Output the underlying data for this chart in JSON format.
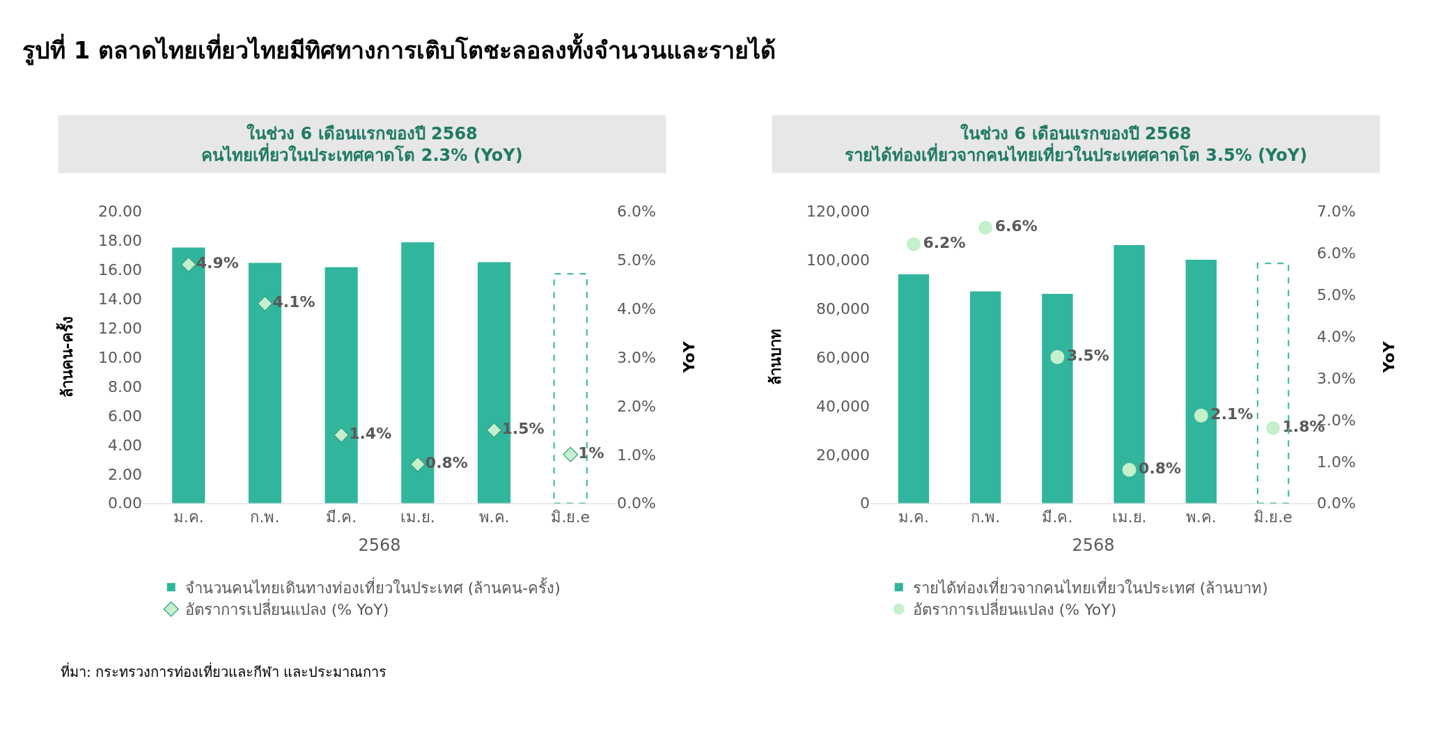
{
  "chart_data": [
    {
      "type": "bar",
      "title": "รูปที่ 1 ตลาดไทยเที่ยวไทยมีทิศทางการเติบโตชะลอลงทั้งจำนวนและรายได้",
      "subtitle": "ในช่วง 6 เดือนแรกของปี 2568\nคนไทยเที่ยวในประเทศคาดโต 2.3% (YoY)",
      "xlabel": "2568",
      "ylabel": "ล้านคน-ครั้ง",
      "y2label": "YoY",
      "categories": [
        "ม.ค.",
        "ก.พ.",
        "มี.ค.",
        "เม.ย.",
        "พ.ค.",
        "มิ.ย.e"
      ],
      "series": [
        {
          "name": "จำนวนคนไทยเดินทางท่องเที่ยวในประเทศ (ล้านคน-ครั้ง)",
          "color": "#31b59c",
          "values": [
            17.5,
            16.45,
            16.15,
            17.85,
            16.5,
            null
          ]
        },
        {
          "color": "#31b59c",
          "line_style": "dashed",
          "values": [
            null,
            null,
            null,
            null,
            null,
            15.7
          ]
        },
        {
          "name": "อัตราการเปลี่ยนแปลง (% YoY)",
          "type": "scatter",
          "axis": "y2",
          "marker": "diamond",
          "color": "#c6efce",
          "values": [
            4.9,
            4.1,
            1.4,
            0.8,
            1.5,
            1
          ],
          "value_labels": [
            "4.9%",
            "4.1%",
            "1.4%",
            "0.8%",
            "1.5%",
            "1%"
          ]
        }
      ],
      "ylim": [
        0,
        20
      ],
      "yticks": [
        {
          "value": 0,
          "label": "0.00"
        },
        {
          "value": 2,
          "label": "2.00"
        },
        {
          "value": 4,
          "label": "4.00"
        },
        {
          "value": 6,
          "label": "6.00"
        },
        {
          "value": 8,
          "label": "8.00"
        },
        {
          "value": 10,
          "label": "10.00"
        },
        {
          "value": 12,
          "label": "12.00"
        },
        {
          "value": 14,
          "label": "14.00"
        },
        {
          "value": 16,
          "label": "16.00"
        },
        {
          "value": 18,
          "label": "18.00"
        },
        {
          "value": 20,
          "label": "20.00"
        }
      ],
      "y2lim": [
        0,
        6
      ],
      "y2ticks": [
        {
          "value": 0,
          "label": "0.0%"
        },
        {
          "value": 1,
          "label": "1.0%"
        },
        {
          "value": 2,
          "label": "2.0%"
        },
        {
          "value": 3,
          "label": "3.0%"
        },
        {
          "value": 4,
          "label": "4.0%"
        },
        {
          "value": 5,
          "label": "5.0%"
        },
        {
          "value": 6,
          "label": "6.0%"
        }
      ],
      "legend": "bottom",
      "annotations": [
        "ที่มา: กระทรวงการท่องเที่ยวและกีฬา และประมาณการ"
      ]
    },
    {
      "type": "bar",
      "subtitle": "ในช่วง 6 เดือนแรกของปี 2568\nรายได้ท่องเที่ยวจากคนไทยเที่ยวในประเทศคาดโต 3.5% (YoY)",
      "xlabel": "2568",
      "ylabel": "ล้านบาท",
      "y2label": "YoY",
      "categories": [
        "ม.ค.",
        "ก.พ.",
        "มี.ค.",
        "เม.ย.",
        "พ.ค.",
        "มิ.ย.e"
      ],
      "series": [
        {
          "name": "รายได้ท่องเที่ยวจากคนไทยเที่ยวในประเทศ (ล้านบาท)",
          "color": "#31b59c",
          "values": [
            94000,
            87000,
            86000,
            106000,
            100000,
            null
          ]
        },
        {
          "color": "#31b59c",
          "line_style": "dashed",
          "values": [
            null,
            null,
            null,
            null,
            null,
            98500
          ]
        },
        {
          "name": "อัตราการเปลี่ยนแปลง (% YoY)",
          "type": "scatter",
          "axis": "y2",
          "marker": "circle",
          "color": "#c4f0cc",
          "values": [
            6.2,
            6.6,
            3.5,
            0.8,
            2.1,
            1.8
          ],
          "value_labels": [
            "6.2%",
            "6.6%",
            "3.5%",
            "0.8%",
            "2.1%",
            "1.8%"
          ]
        }
      ],
      "ylim": [
        0,
        120000
      ],
      "yticks": [
        0,
        {
          "value": 20000,
          "label": "20,000"
        },
        {
          "value": 40000,
          "label": "40,000"
        },
        {
          "value": 60000,
          "label": "60,000"
        },
        {
          "value": 80000,
          "label": "80,000"
        },
        {
          "value": 100000,
          "label": "100,000"
        },
        {
          "value": 120000,
          "label": "120,000"
        }
      ],
      "y2lim": [
        0,
        7
      ],
      "y2ticks": [
        {
          "value": 0,
          "label": "0.0%"
        },
        {
          "value": 1,
          "label": "1.0%"
        },
        {
          "value": 2,
          "label": "2.0%"
        },
        {
          "value": 3,
          "label": "3.0%"
        },
        {
          "value": 4,
          "label": "4.0%"
        },
        {
          "value": 5,
          "label": "5.0%"
        },
        {
          "value": 6,
          "label": "6.0%"
        },
        {
          "value": 7,
          "label": "7.0%"
        }
      ],
      "legend": "bottom"
    }
  ]
}
